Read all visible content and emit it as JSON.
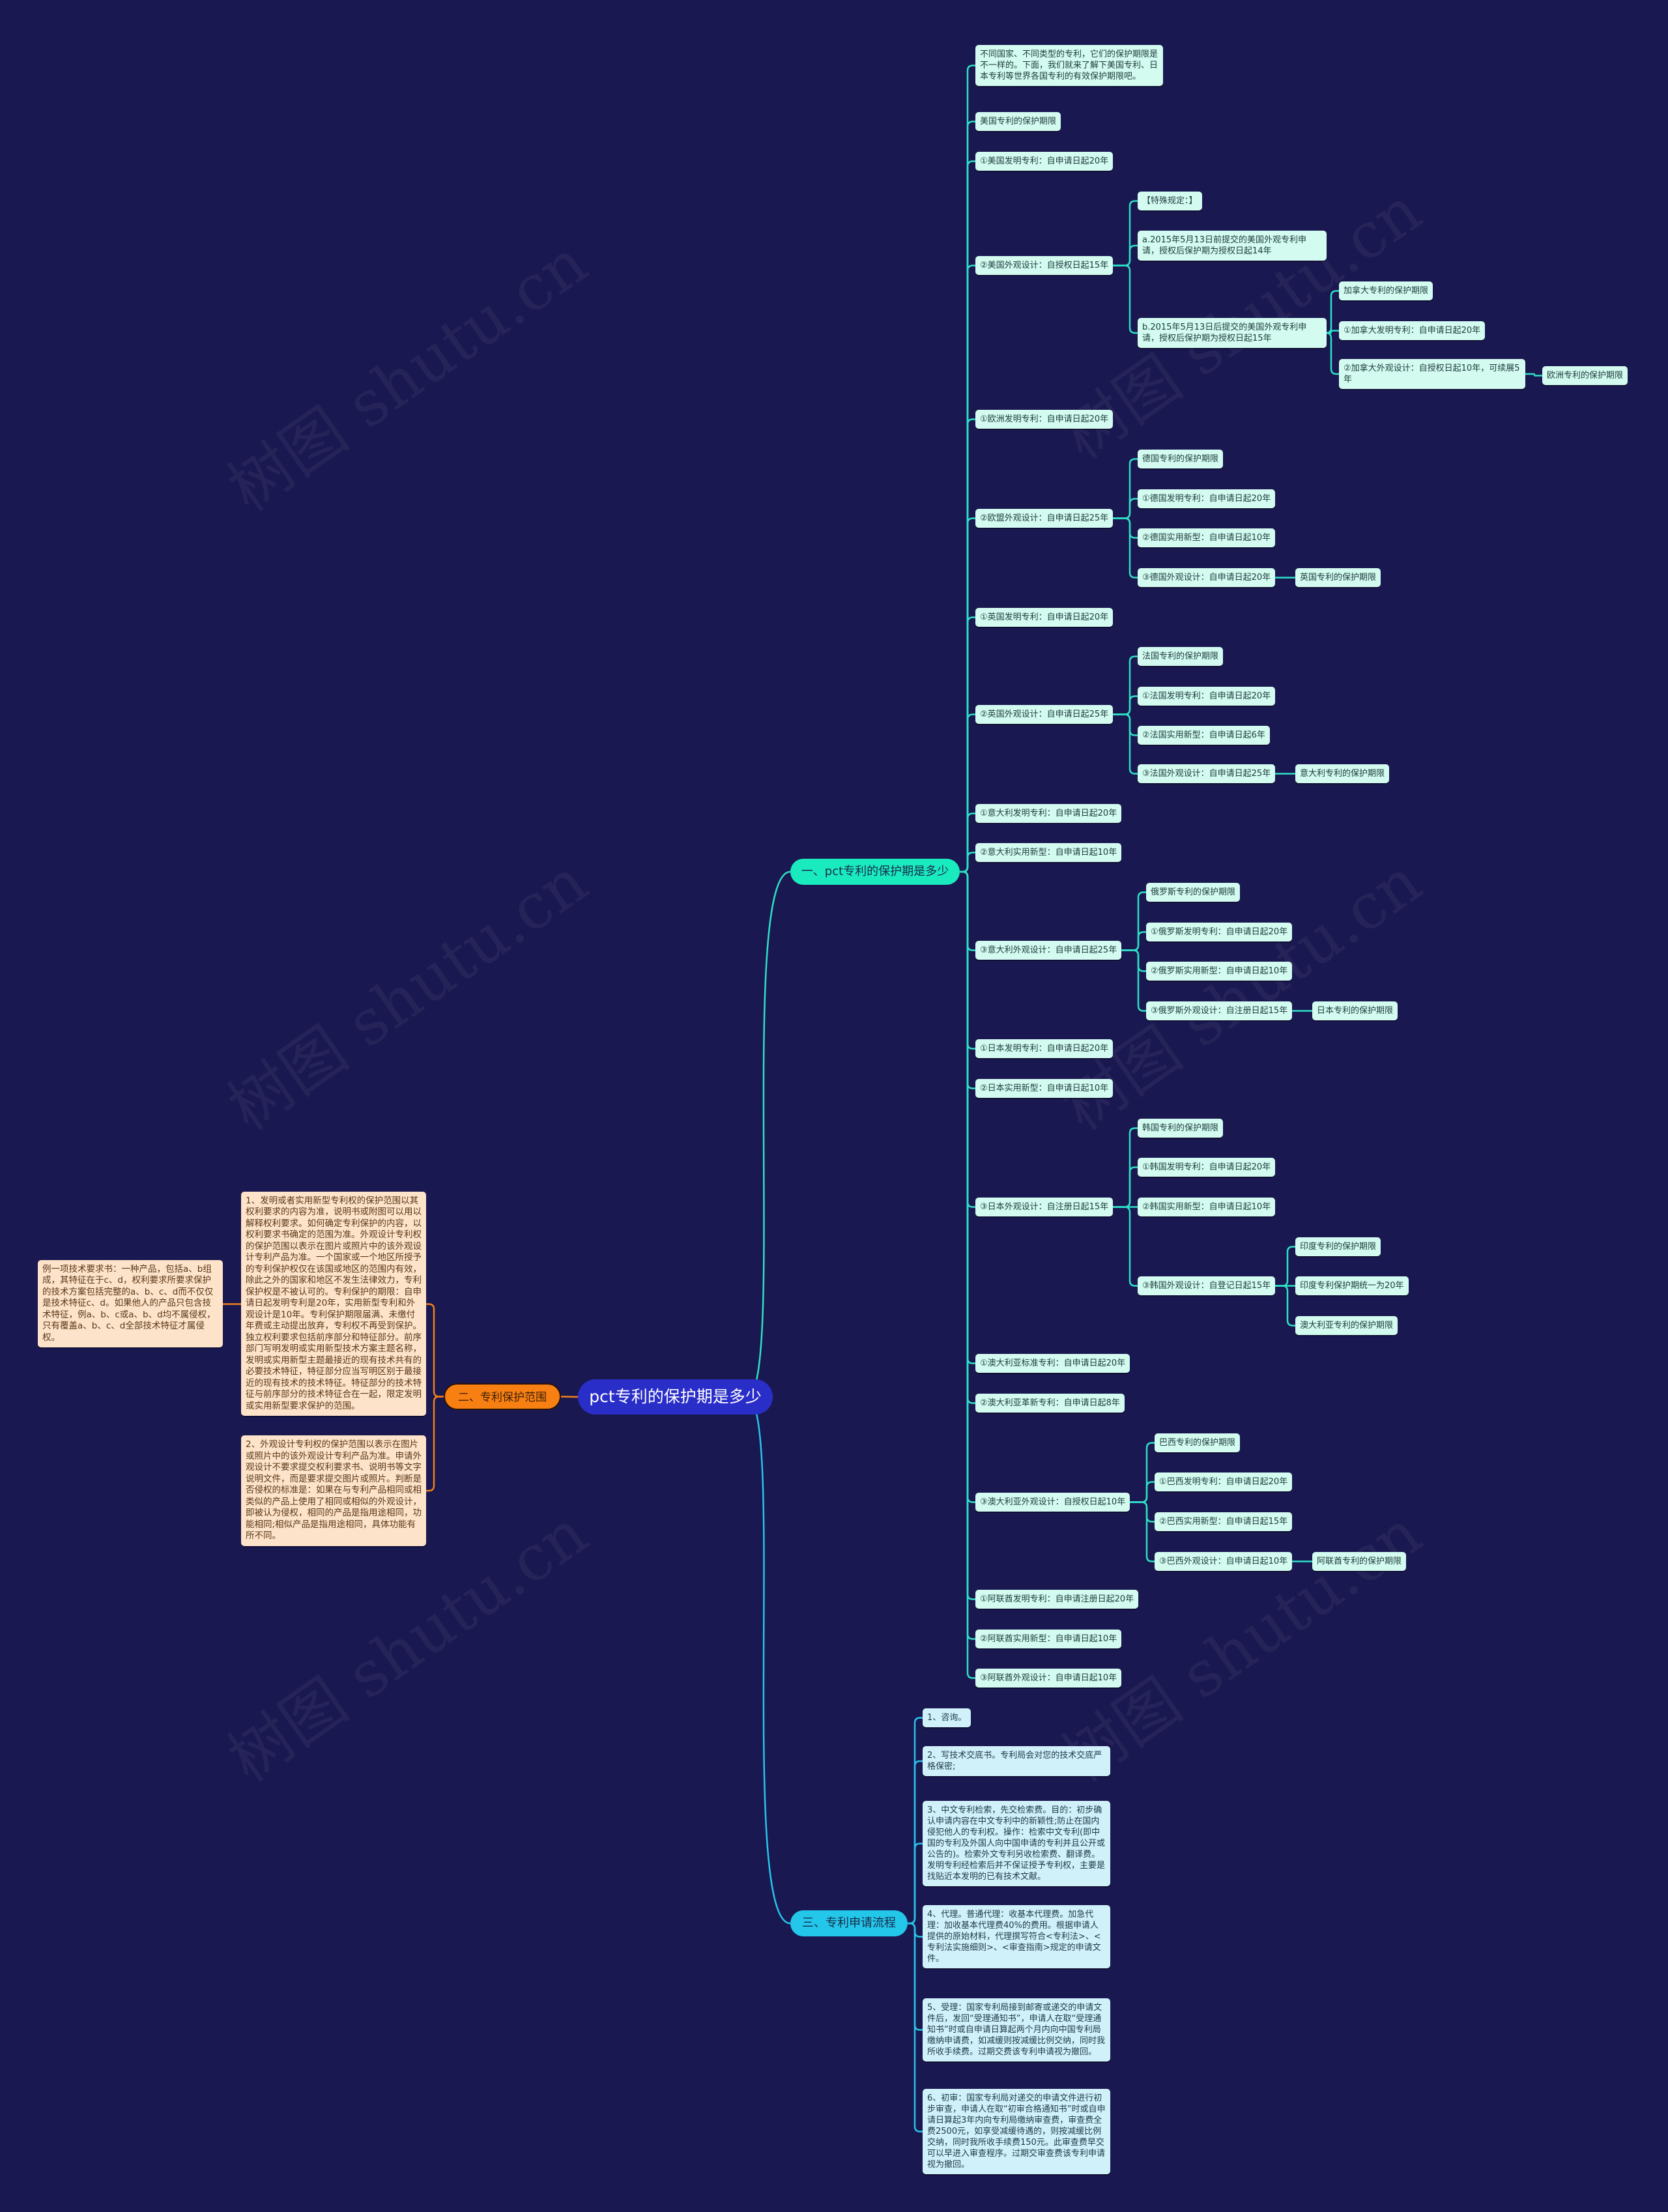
{
  "colors": {
    "background": "#1a1850",
    "root": "#2a2ec8",
    "branch1": "#19ebbf",
    "branch2": "#f88012",
    "branch3": "#22c7ea",
    "branch1_line": "#2de0c6",
    "branch2_line": "#f0801a",
    "branch3_line": "#27c4ea"
  },
  "watermark": "树图 shutu.cn",
  "root": {
    "label": "pct专利的保护期是多少"
  },
  "branch1": {
    "label": "一、pct专利的保护期是多少",
    "children": [
      {
        "text": "不同国家、不同类型的专利，它们的保护期限是不一样的。下面，我们就来了解下美国专利、日本专利等世界各国专利的有效保护期限吧。"
      },
      {
        "text": "美国专利的保护期限"
      },
      {
        "text": "①美国发明专利：自申请日起20年"
      },
      {
        "text": "②美国外观设计：自授权日起15年",
        "children": [
          {
            "text": "【特殊规定：】"
          },
          {
            "text": "a.2015年5月13日前提交的美国外观专利申请，授权后保护期为授权日起14年"
          },
          {
            "text": "b.2015年5月13日后提交的美国外观专利申请，授权后保护期为授权日起15年",
            "children": [
              {
                "text": "加拿大专利的保护期限"
              },
              {
                "text": "①加拿大发明专利：自申请日起20年"
              },
              {
                "text": "②加拿大外观设计：自授权日起10年，可续展5年",
                "children": [
                  {
                    "text": "欧洲专利的保护期限"
                  }
                ]
              }
            ]
          }
        ]
      },
      {
        "text": "①欧洲发明专利：自申请日起20年"
      },
      {
        "text": "②欧盟外观设计：自申请日起25年",
        "children": [
          {
            "text": "德国专利的保护期限"
          },
          {
            "text": "①德国发明专利：自申请日起20年"
          },
          {
            "text": "②德国实用新型：自申请日起10年"
          },
          {
            "text": "③德国外观设计：自申请日起20年",
            "children": [
              {
                "text": "英国专利的保护期限"
              }
            ]
          }
        ]
      },
      {
        "text": "①英国发明专利：自申请日起20年"
      },
      {
        "text": "②英国外观设计：自申请日起25年",
        "children": [
          {
            "text": "法国专利的保护期限"
          },
          {
            "text": "①法国发明专利：自申请日起20年"
          },
          {
            "text": "②法国实用新型：自申请日起6年"
          },
          {
            "text": "③法国外观设计：自申请日起25年",
            "children": [
              {
                "text": "意大利专利的保护期限"
              }
            ]
          }
        ]
      },
      {
        "text": "①意大利发明专利：自申请日起20年"
      },
      {
        "text": "②意大利实用新型：自申请日起10年"
      },
      {
        "text": "③意大利外观设计：自申请日起25年",
        "children": [
          {
            "text": "俄罗斯专利的保护期限"
          },
          {
            "text": "①俄罗斯发明专利：自申请日起20年"
          },
          {
            "text": "②俄罗斯实用新型：自申请日起10年"
          },
          {
            "text": "③俄罗斯外观设计：自注册日起15年",
            "children": [
              {
                "text": "日本专利的保护期限"
              }
            ]
          }
        ]
      },
      {
        "text": "①日本发明专利：自申请日起20年"
      },
      {
        "text": "②日本实用新型：自申请日起10年"
      },
      {
        "text": "③日本外观设计：自注册日起15年",
        "children": [
          {
            "text": "韩国专利的保护期限"
          },
          {
            "text": "①韩国发明专利：自申请日起20年"
          },
          {
            "text": "②韩国实用新型：自申请日起10年"
          },
          {
            "text": "③韩国外观设计：自登记日起15年",
            "children": [
              {
                "text": "印度专利的保护期限"
              },
              {
                "text": "印度专利保护期统一为20年"
              },
              {
                "text": "澳大利亚专利的保护期限"
              }
            ]
          }
        ]
      },
      {
        "text": "①澳大利亚标准专利：自申请日起20年"
      },
      {
        "text": "②澳大利亚革新专利：自申请日起8年"
      },
      {
        "text": "③澳大利亚外观设计：自授权日起10年",
        "children": [
          {
            "text": "巴西专利的保护期限"
          },
          {
            "text": "①巴西发明专利：自申请日起20年"
          },
          {
            "text": "②巴西实用新型：自申请日起15年"
          },
          {
            "text": "③巴西外观设计：自申请日起10年",
            "children": [
              {
                "text": "阿联酋专利的保护期限"
              }
            ]
          }
        ]
      },
      {
        "text": "①阿联酋发明专利：自申请注册日起20年"
      },
      {
        "text": "②阿联酋实用新型：自申请日起10年"
      },
      {
        "text": "③阿联酋外观设计：自申请日起10年"
      }
    ]
  },
  "branch2": {
    "label": "二、专利保护范围",
    "children": [
      {
        "text": "1、发明或者实用新型专利权的保护范围以其权利要求的内容为准，说明书或附图可以用以解释权利要求。如何确定专利保护的内容，以权利要求书确定的范围为准。外观设计专利权的保护范围以表示在图片或照片中的该外观设计专利产品为准。一个国家或一个地区所授予的专利保护权仅在该国或地区的范围内有效，除此之外的国家和地区不发生法律效力，专利保护权是不被认可的。专利保护的期限：自申请日起发明专利是20年，实用新型专利和外观设计是10年。专利保护期限届满、未缴付年费或主动提出放弃，专利权不再受到保护。独立权利要求包括前序部分和特征部分。前序部门写明发明或实用新型技术方案主题名称，发明或实用新型主题最接近的现有技术共有的必要技术特征，特征部分应当写明区别于最接近的现有技术的技术特征。特征部分的技术特征与前序部分的技术特征合在一起，限定发明或实用新型要求保护的范围。",
        "children": [
          {
            "text": "例一项技术要求书：一种产品，包括a、b组成，其特征在于c、d，权利要求所要求保护的技术方案包括完整的a、b、c、d而不仅仅是技术特征c、d。如果他人的产品只包含技术特征，例a、b、c或a、b、d均不属侵权，只有覆盖a、b、c、d全部技术特征才属侵权。"
          }
        ]
      },
      {
        "text": "2、外观设计专利权的保护范围以表示在图片或照片中的该外观设计专利产品为准。申请外观设计不要求提交权利要求书、说明书等文字说明文件，而是要求提交图片或照片。判断是否侵权的标准是：如果在与专利产品相同或相类似的产品上使用了相同或相似的外观设计，即被认为侵权，相同的产品是指用途相同，功能相同;相似产品是指用途相同，具体功能有所不同。"
      }
    ]
  },
  "branch3": {
    "label": "三、专利申请流程",
    "children": [
      {
        "text": "1、咨询。"
      },
      {
        "text": "2、写技术交底书。专利局会对您的技术交底严格保密;"
      },
      {
        "text": "3、中文专利检索，先交检索费。目的：初步确认申请内容在中文专利中的新颖性;防止在国内侵犯他人的专利权。操作：检索中文专利(即中国的专利及外国人向中国申请的专利并且公开或公告的)。检索外文专利另收检索费、翻译费。发明专利经检索后并不保证授予专利权，主要是找贴近本发明的已有技术文献。"
      },
      {
        "text": "4、代理。普通代理：收基本代理费。加急代理：加收基本代理费40%的费用。根据申请人提供的原始材料，代理撰写符合<专利法>、<专利法实施细则>、<审查指南>规定的申请文件。"
      },
      {
        "text": "5、受理：国家专利局接到邮寄或递交的申请文件后，发回“受理通知书”，申请人在取“受理通知书”时或自申请日算起两个月内向中国专利局缴纳申请费，如减缓则按减缓比例交纳，同时我所收手续费。过期交费该专利申请视为撤回。"
      },
      {
        "text": "6、初审：国家专利局对递交的申请文件进行初步审查，申请人在取“初审合格通知书”时或自申请日算起3年内向专利局缴纳审查费，审查费全费2500元，如享受减缓待遇的，则按减缓比例交纳，同时我所收手续费150元。此审查费早交可以早进入审查程序。过期交审查费该专利申请视为撤回。"
      }
    ]
  }
}
